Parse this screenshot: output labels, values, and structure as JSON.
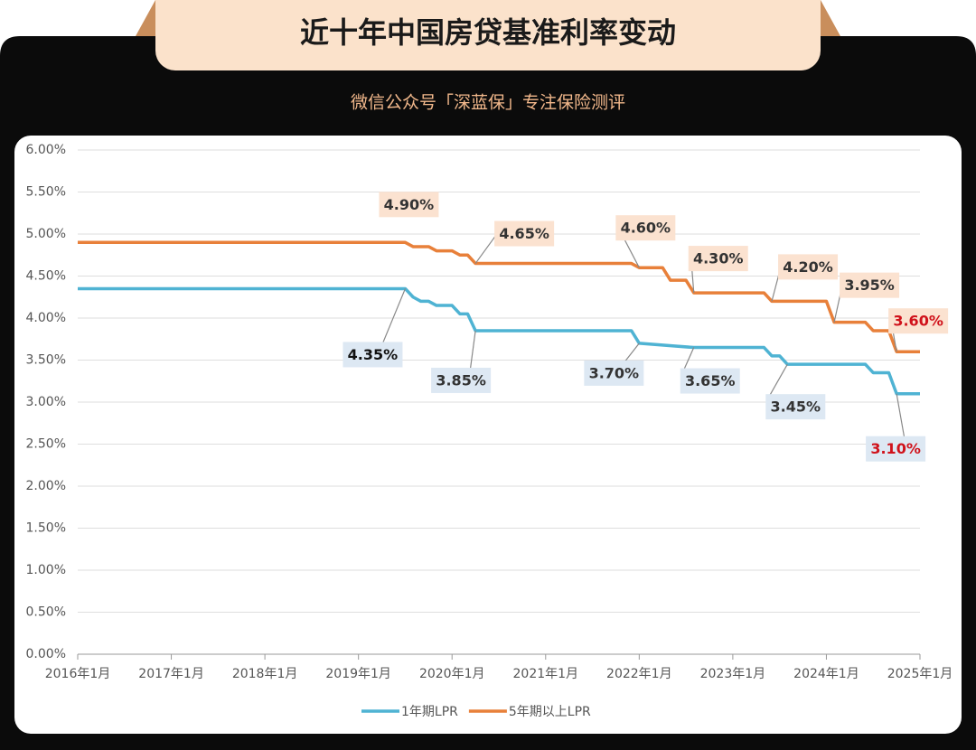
{
  "chart_data": {
    "type": "line",
    "title": "近十年中国房贷基准利率变动",
    "subtitle": "微信公众号「深蓝保」专注保险测评",
    "xlim": [
      "2016-01",
      "2025-01"
    ],
    "xticks": [
      {
        "value": "2016-01",
        "label": "2016年1月"
      },
      {
        "value": "2017-01",
        "label": "2017年1月"
      },
      {
        "value": "2018-01",
        "label": "2018年1月"
      },
      {
        "value": "2019-01",
        "label": "2019年1月"
      },
      {
        "value": "2020-01",
        "label": "2020年1月"
      },
      {
        "value": "2021-01",
        "label": "2021年1月"
      },
      {
        "value": "2022-01",
        "label": "2022年1月"
      },
      {
        "value": "2023-01",
        "label": "2023年1月"
      },
      {
        "value": "2024-01",
        "label": "2024年1月"
      },
      {
        "value": "2025-01",
        "label": "2025年1月"
      }
    ],
    "ylim": [
      0,
      6
    ],
    "yticks": [
      {
        "value": 0,
        "label": "0.00%"
      },
      {
        "value": 0.5,
        "label": "0.50%"
      },
      {
        "value": 1,
        "label": "1.00%"
      },
      {
        "value": 1.5,
        "label": "1.50%"
      },
      {
        "value": 2,
        "label": "2.00%"
      },
      {
        "value": 2.5,
        "label": "2.50%"
      },
      {
        "value": 3,
        "label": "3.00%"
      },
      {
        "value": 3.5,
        "label": "3.50%"
      },
      {
        "value": 4,
        "label": "4.00%"
      },
      {
        "value": 4.5,
        "label": "4.50%"
      },
      {
        "value": 5,
        "label": "5.00%"
      },
      {
        "value": 5.5,
        "label": "5.50%"
      },
      {
        "value": 6,
        "label": "6.00%"
      }
    ],
    "grid": true,
    "series": [
      {
        "name": "1年期LPR",
        "color": "#4fb3d3",
        "x": [
          "2016-01",
          "2019-07",
          "2019-08",
          "2019-09",
          "2019-10",
          "2019-11",
          "2020-01",
          "2020-02",
          "2020-03",
          "2020-04",
          "2021-12",
          "2022-01",
          "2022-08",
          "2023-05",
          "2023-06",
          "2023-07",
          "2023-08",
          "2024-06",
          "2024-07",
          "2024-09",
          "2024-10",
          "2025-01"
        ],
        "values": [
          4.35,
          4.35,
          4.25,
          4.2,
          4.2,
          4.15,
          4.15,
          4.05,
          4.05,
          3.85,
          3.85,
          3.7,
          3.65,
          3.65,
          3.55,
          3.55,
          3.45,
          3.45,
          3.35,
          3.35,
          3.1,
          3.1
        ]
      },
      {
        "name": "5年期以上LPR",
        "color": "#e8803a",
        "x": [
          "2016-01",
          "2019-07",
          "2019-08",
          "2019-10",
          "2019-11",
          "2020-01",
          "2020-02",
          "2020-03",
          "2020-04",
          "2021-12",
          "2022-01",
          "2022-04",
          "2022-05",
          "2022-07",
          "2022-08",
          "2023-05",
          "2023-06",
          "2024-01",
          "2024-02",
          "2024-06",
          "2024-07",
          "2024-09",
          "2024-10",
          "2025-01"
        ],
        "values": [
          4.9,
          4.9,
          4.85,
          4.85,
          4.8,
          4.8,
          4.75,
          4.75,
          4.65,
          4.65,
          4.6,
          4.6,
          4.45,
          4.45,
          4.3,
          4.3,
          4.2,
          4.2,
          3.95,
          3.95,
          3.85,
          3.85,
          3.6,
          3.6
        ]
      }
    ],
    "annotations": [
      {
        "x": "2019-07",
        "value": 4.9,
        "label": "4.90%",
        "color": "#333333"
      },
      {
        "x": "2020-04",
        "value": 4.65,
        "label": "4.65%",
        "color": "#333333"
      },
      {
        "x": "2022-01",
        "value": 4.6,
        "label": "4.60%",
        "color": "#333333"
      },
      {
        "x": "2022-08",
        "value": 4.3,
        "label": "4.30%",
        "color": "#333333"
      },
      {
        "x": "2023-06",
        "value": 4.2,
        "label": "4.20%",
        "color": "#333333"
      },
      {
        "x": "2024-02",
        "value": 3.95,
        "label": "3.95%",
        "color": "#333333"
      },
      {
        "x": "2024-10",
        "value": 3.6,
        "label": "3.60%",
        "color": "#d0121b"
      },
      {
        "x": "2019-07",
        "value": 4.35,
        "label": "4.35%",
        "color": "#111111"
      },
      {
        "x": "2020-04",
        "value": 3.85,
        "label": "3.85%",
        "color": "#333333"
      },
      {
        "x": "2022-01",
        "value": 3.7,
        "label": "3.70%",
        "color": "#333333"
      },
      {
        "x": "2022-08",
        "value": 3.65,
        "label": "3.65%",
        "color": "#333333"
      },
      {
        "x": "2023-08",
        "value": 3.45,
        "label": "3.45%",
        "color": "#333333"
      },
      {
        "x": "2024-10",
        "value": 3.1,
        "label": "3.10%",
        "color": "#d0121b"
      }
    ]
  }
}
